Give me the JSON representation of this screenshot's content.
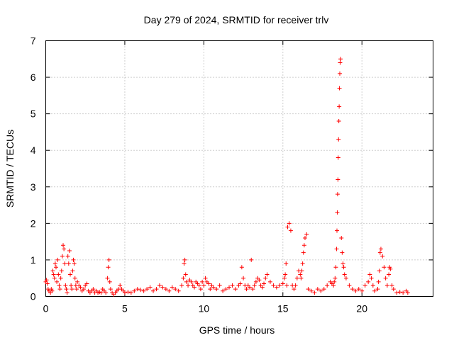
{
  "chart_data": {
    "type": "scatter",
    "title": "Day 279 of 2024, SRMTID for receiver trlv",
    "xlabel": "GPS time / hours",
    "ylabel": "SRMTID / TECUs",
    "xlim": [
      0,
      24.5
    ],
    "ylim": [
      0,
      7
    ],
    "x_ticks": [
      0,
      5,
      10,
      15,
      20
    ],
    "y_ticks": [
      0,
      1,
      2,
      3,
      4,
      5,
      6,
      7
    ],
    "x_tick_labels": [
      "0",
      "5",
      "10",
      "15",
      "20"
    ],
    "y_tick_labels": [
      "0",
      "1",
      "2",
      "3",
      "4",
      "5",
      "6",
      "7"
    ],
    "grid": true,
    "marker": "+",
    "color": "#ff0000",
    "series": [
      {
        "name": "trlv",
        "x": [
          0.0,
          0.05,
          0.1,
          0.15,
          0.2,
          0.3,
          0.35,
          0.4,
          0.45,
          0.5,
          0.55,
          0.6,
          0.65,
          0.7,
          0.75,
          0.8,
          0.85,
          0.9,
          0.95,
          1.0,
          1.05,
          1.1,
          1.15,
          1.2,
          1.25,
          1.3,
          1.35,
          1.4,
          1.45,
          1.5,
          1.55,
          1.6,
          1.65,
          1.7,
          1.75,
          1.8,
          1.85,
          1.9,
          1.95,
          2.0,
          2.1,
          2.2,
          2.3,
          2.4,
          2.5,
          2.6,
          2.7,
          2.8,
          2.9,
          3.0,
          3.1,
          3.2,
          3.3,
          3.4,
          3.5,
          3.6,
          3.7,
          3.8,
          3.9,
          3.95,
          4.0,
          4.05,
          4.1,
          4.2,
          4.3,
          4.4,
          4.5,
          4.6,
          4.7,
          4.8,
          4.9,
          5.0,
          5.2,
          5.4,
          5.6,
          5.8,
          6.0,
          6.2,
          6.4,
          6.6,
          6.8,
          7.0,
          7.2,
          7.4,
          7.6,
          7.8,
          8.0,
          8.2,
          8.4,
          8.6,
          8.7,
          8.75,
          8.8,
          8.85,
          8.9,
          9.0,
          9.1,
          9.2,
          9.3,
          9.4,
          9.5,
          9.6,
          9.7,
          9.8,
          9.9,
          10.0,
          10.1,
          10.2,
          10.3,
          10.4,
          10.5,
          10.6,
          10.8,
          11.0,
          11.2,
          11.4,
          11.6,
          11.8,
          12.0,
          12.2,
          12.3,
          12.4,
          12.5,
          12.6,
          12.7,
          12.8,
          12.9,
          13.0,
          13.1,
          13.2,
          13.3,
          13.4,
          13.5,
          13.6,
          13.7,
          13.8,
          13.9,
          14.0,
          14.2,
          14.4,
          14.6,
          14.8,
          15.0,
          15.1,
          15.15,
          15.2,
          15.25,
          15.3,
          15.4,
          15.5,
          15.6,
          15.7,
          15.8,
          15.9,
          16.0,
          16.1,
          16.15,
          16.2,
          16.25,
          16.3,
          16.35,
          16.4,
          16.5,
          16.6,
          16.8,
          17.0,
          17.2,
          17.4,
          17.6,
          17.8,
          18.0,
          18.1,
          18.2,
          18.25,
          18.3,
          18.35,
          18.4,
          18.42,
          18.44,
          18.46,
          18.48,
          18.5,
          18.52,
          18.54,
          18.56,
          18.58,
          18.6,
          18.62,
          18.65,
          18.7,
          18.75,
          18.8,
          18.85,
          18.9,
          19.0,
          19.2,
          19.4,
          19.6,
          19.8,
          20.0,
          20.2,
          20.4,
          20.5,
          20.6,
          20.7,
          20.8,
          21.0,
          21.05,
          21.1,
          21.15,
          21.2,
          21.3,
          21.4,
          21.5,
          21.6,
          21.7,
          21.75,
          21.8,
          21.9,
          22.0,
          22.2,
          22.4,
          22.6,
          22.8,
          22.9
        ],
        "y": [
          0.4,
          0.45,
          0.35,
          0.2,
          0.15,
          0.1,
          0.2,
          0.15,
          0.7,
          0.6,
          0.5,
          0.9,
          0.8,
          0.4,
          1.0,
          0.6,
          0.3,
          0.2,
          0.5,
          0.7,
          1.1,
          1.4,
          1.3,
          0.9,
          0.3,
          0.2,
          0.1,
          1.1,
          0.9,
          1.25,
          0.6,
          0.3,
          0.2,
          0.7,
          1.0,
          0.9,
          0.5,
          0.3,
          0.2,
          0.4,
          0.3,
          0.25,
          0.15,
          0.2,
          0.3,
          0.35,
          0.15,
          0.1,
          0.15,
          0.2,
          0.1,
          0.15,
          0.1,
          0.12,
          0.1,
          0.2,
          0.15,
          0.1,
          0.5,
          0.8,
          1.0,
          0.4,
          0.2,
          0.1,
          0.05,
          0.1,
          0.15,
          0.2,
          0.3,
          0.2,
          0.15,
          0.1,
          0.12,
          0.1,
          0.15,
          0.2,
          0.18,
          0.15,
          0.2,
          0.25,
          0.15,
          0.2,
          0.3,
          0.25,
          0.2,
          0.15,
          0.25,
          0.2,
          0.15,
          0.3,
          0.5,
          0.9,
          1.0,
          0.6,
          0.4,
          0.3,
          0.45,
          0.4,
          0.3,
          0.25,
          0.4,
          0.35,
          0.3,
          0.2,
          0.4,
          0.3,
          0.5,
          0.4,
          0.35,
          0.2,
          0.3,
          0.25,
          0.2,
          0.3,
          0.15,
          0.2,
          0.25,
          0.3,
          0.2,
          0.3,
          0.35,
          0.8,
          0.5,
          0.3,
          0.2,
          0.3,
          0.25,
          1.0,
          0.2,
          0.3,
          0.4,
          0.5,
          0.45,
          0.3,
          0.25,
          0.35,
          0.5,
          0.6,
          0.4,
          0.3,
          0.25,
          0.3,
          0.35,
          0.5,
          0.6,
          0.9,
          0.3,
          1.9,
          2.0,
          1.8,
          0.3,
          0.2,
          0.3,
          0.5,
          0.7,
          0.6,
          0.5,
          0.7,
          0.9,
          1.2,
          1.4,
          1.6,
          1.7,
          0.2,
          0.15,
          0.1,
          0.2,
          0.15,
          0.2,
          0.3,
          0.4,
          0.35,
          0.3,
          0.4,
          0.5,
          0.8,
          1.3,
          1.8,
          2.3,
          2.8,
          3.2,
          3.8,
          4.3,
          4.8,
          5.2,
          5.7,
          6.1,
          6.4,
          6.5,
          1.6,
          1.2,
          0.9,
          0.8,
          0.6,
          0.5,
          0.3,
          0.2,
          0.15,
          0.2,
          0.15,
          0.3,
          0.4,
          0.6,
          0.5,
          0.3,
          0.15,
          0.2,
          0.4,
          0.7,
          1.2,
          1.3,
          1.1,
          0.8,
          0.5,
          0.3,
          0.6,
          0.8,
          0.75,
          0.3,
          0.2,
          0.1,
          0.12,
          0.1,
          0.15,
          0.1
        ]
      }
    ]
  }
}
